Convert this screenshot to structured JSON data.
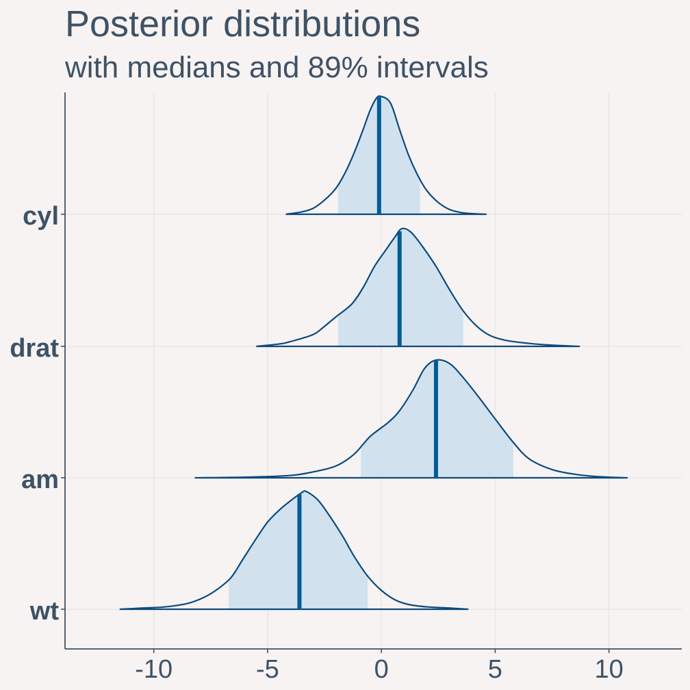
{
  "chart_data": {
    "type": "ridgeline",
    "title": "Posterior distributions",
    "subtitle": "with medians and 89% intervals",
    "xlabel": "",
    "ylabel": "",
    "xlim": [
      -13.9,
      13.2
    ],
    "xticks": [
      -10,
      -5,
      0,
      5,
      10
    ],
    "xtick_labels": [
      "-10",
      "-5",
      "0",
      "5",
      "10"
    ],
    "grid": true,
    "colors": {
      "background": "#f7f3f2",
      "grid": "#e9e7e6",
      "axis": "#3e5266",
      "text": "#3e5266",
      "outline": "#0b4a7d",
      "interval_fill": "#d1e2ee",
      "median": "#005b96"
    },
    "series": [
      {
        "name": "cyl",
        "median": -0.1,
        "interval": [
          -1.9,
          1.7
        ],
        "support": [
          -4.2,
          4.6
        ],
        "density": [
          [
            -4.2,
            0.0
          ],
          [
            -3.5,
            0.02
          ],
          [
            -3.0,
            0.05
          ],
          [
            -2.5,
            0.12
          ],
          [
            -2.0,
            0.22
          ],
          [
            -1.6,
            0.35
          ],
          [
            -1.2,
            0.52
          ],
          [
            -0.8,
            0.72
          ],
          [
            -0.5,
            0.88
          ],
          [
            -0.2,
            0.99
          ],
          [
            0.0,
            1.0
          ],
          [
            0.3,
            0.97
          ],
          [
            0.5,
            0.9
          ],
          [
            0.8,
            0.72
          ],
          [
            1.2,
            0.5
          ],
          [
            1.6,
            0.33
          ],
          [
            2.0,
            0.2
          ],
          [
            2.5,
            0.1
          ],
          [
            3.0,
            0.04
          ],
          [
            3.5,
            0.015
          ],
          [
            4.0,
            0.005
          ],
          [
            4.6,
            0.0
          ]
        ]
      },
      {
        "name": "drat",
        "median": 0.8,
        "interval": [
          -1.9,
          3.6
        ],
        "support": [
          -5.5,
          8.7
        ],
        "density": [
          [
            -5.5,
            0.0
          ],
          [
            -4.5,
            0.02
          ],
          [
            -4.0,
            0.04
          ],
          [
            -3.0,
            0.1
          ],
          [
            -2.5,
            0.17
          ],
          [
            -2.0,
            0.25
          ],
          [
            -1.3,
            0.36
          ],
          [
            -0.8,
            0.5
          ],
          [
            -0.3,
            0.68
          ],
          [
            0.2,
            0.82
          ],
          [
            0.6,
            0.93
          ],
          [
            0.9,
            1.0
          ],
          [
            1.3,
            0.97
          ],
          [
            1.8,
            0.85
          ],
          [
            2.4,
            0.68
          ],
          [
            3.0,
            0.48
          ],
          [
            3.6,
            0.3
          ],
          [
            4.2,
            0.17
          ],
          [
            4.8,
            0.09
          ],
          [
            5.5,
            0.05
          ],
          [
            6.5,
            0.025
          ],
          [
            7.5,
            0.01
          ],
          [
            8.7,
            0.0
          ]
        ]
      },
      {
        "name": "am",
        "median": 2.4,
        "interval": [
          -0.9,
          5.8
        ],
        "support": [
          -8.2,
          10.8
        ],
        "density": [
          [
            -8.2,
            0.0
          ],
          [
            -6.0,
            0.005
          ],
          [
            -4.0,
            0.02
          ],
          [
            -3.0,
            0.05
          ],
          [
            -2.0,
            0.1
          ],
          [
            -1.2,
            0.2
          ],
          [
            -0.5,
            0.35
          ],
          [
            0.3,
            0.47
          ],
          [
            0.8,
            0.57
          ],
          [
            1.4,
            0.75
          ],
          [
            1.9,
            0.93
          ],
          [
            2.4,
            1.0
          ],
          [
            3.0,
            0.97
          ],
          [
            3.6,
            0.85
          ],
          [
            4.3,
            0.68
          ],
          [
            5.0,
            0.5
          ],
          [
            5.8,
            0.3
          ],
          [
            6.5,
            0.16
          ],
          [
            7.5,
            0.07
          ],
          [
            8.5,
            0.03
          ],
          [
            9.5,
            0.01
          ],
          [
            10.8,
            0.0
          ]
        ]
      },
      {
        "name": "wt",
        "median": -3.6,
        "interval": [
          -6.7,
          -0.6
        ],
        "support": [
          -11.5,
          3.8
        ],
        "density": [
          [
            -11.5,
            0.0
          ],
          [
            -10.5,
            0.01
          ],
          [
            -9.5,
            0.02
          ],
          [
            -8.5,
            0.05
          ],
          [
            -7.8,
            0.1
          ],
          [
            -7.2,
            0.17
          ],
          [
            -6.6,
            0.27
          ],
          [
            -6.1,
            0.42
          ],
          [
            -5.5,
            0.6
          ],
          [
            -5.0,
            0.74
          ],
          [
            -4.5,
            0.84
          ],
          [
            -4.0,
            0.92
          ],
          [
            -3.5,
            0.99
          ],
          [
            -3.3,
            1.0
          ],
          [
            -2.8,
            0.93
          ],
          [
            -2.3,
            0.8
          ],
          [
            -1.7,
            0.62
          ],
          [
            -1.2,
            0.45
          ],
          [
            -0.6,
            0.28
          ],
          [
            0.0,
            0.16
          ],
          [
            0.6,
            0.08
          ],
          [
            1.2,
            0.04
          ],
          [
            2.0,
            0.02
          ],
          [
            3.0,
            0.01
          ],
          [
            3.8,
            0.0
          ]
        ]
      }
    ]
  }
}
